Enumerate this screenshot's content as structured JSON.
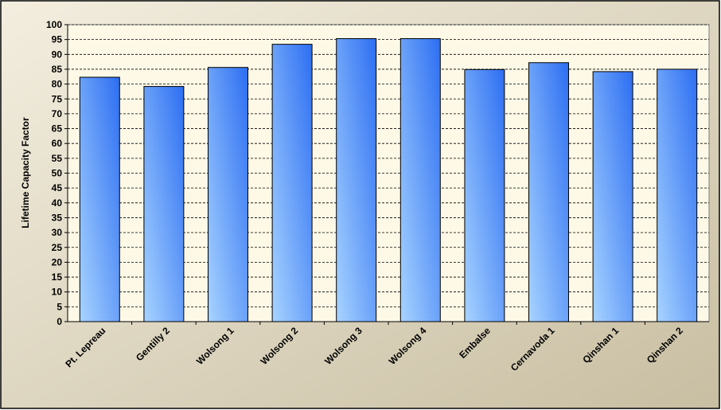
{
  "chart_data": {
    "type": "bar",
    "title": "",
    "xlabel": "",
    "ylabel": "Lifetime Capacity Factor",
    "ylim": [
      0,
      100
    ],
    "ytick_step": 5,
    "grid": true,
    "legend": "none",
    "categories": [
      "Pt. Lepreau",
      "Gentilly 2",
      "Wolsong 1",
      "Wolsong 2",
      "Wolsong 3",
      "Wolsong 4",
      "Embalse",
      "Cernavoda 1",
      "Qinshan 1",
      "Qinshan 2"
    ],
    "values": [
      82.3,
      79.2,
      85.6,
      93.4,
      95.3,
      95.3,
      84.9,
      87.2,
      84.2,
      85.0
    ],
    "colors": {
      "bar_light": "#a8d4ff",
      "bar_dark": "#2d6ef2",
      "plot_background": "#fdf9e6",
      "frame_gradient_light": "#f3eedf",
      "frame_gradient_dark": "#c8bea2"
    }
  }
}
